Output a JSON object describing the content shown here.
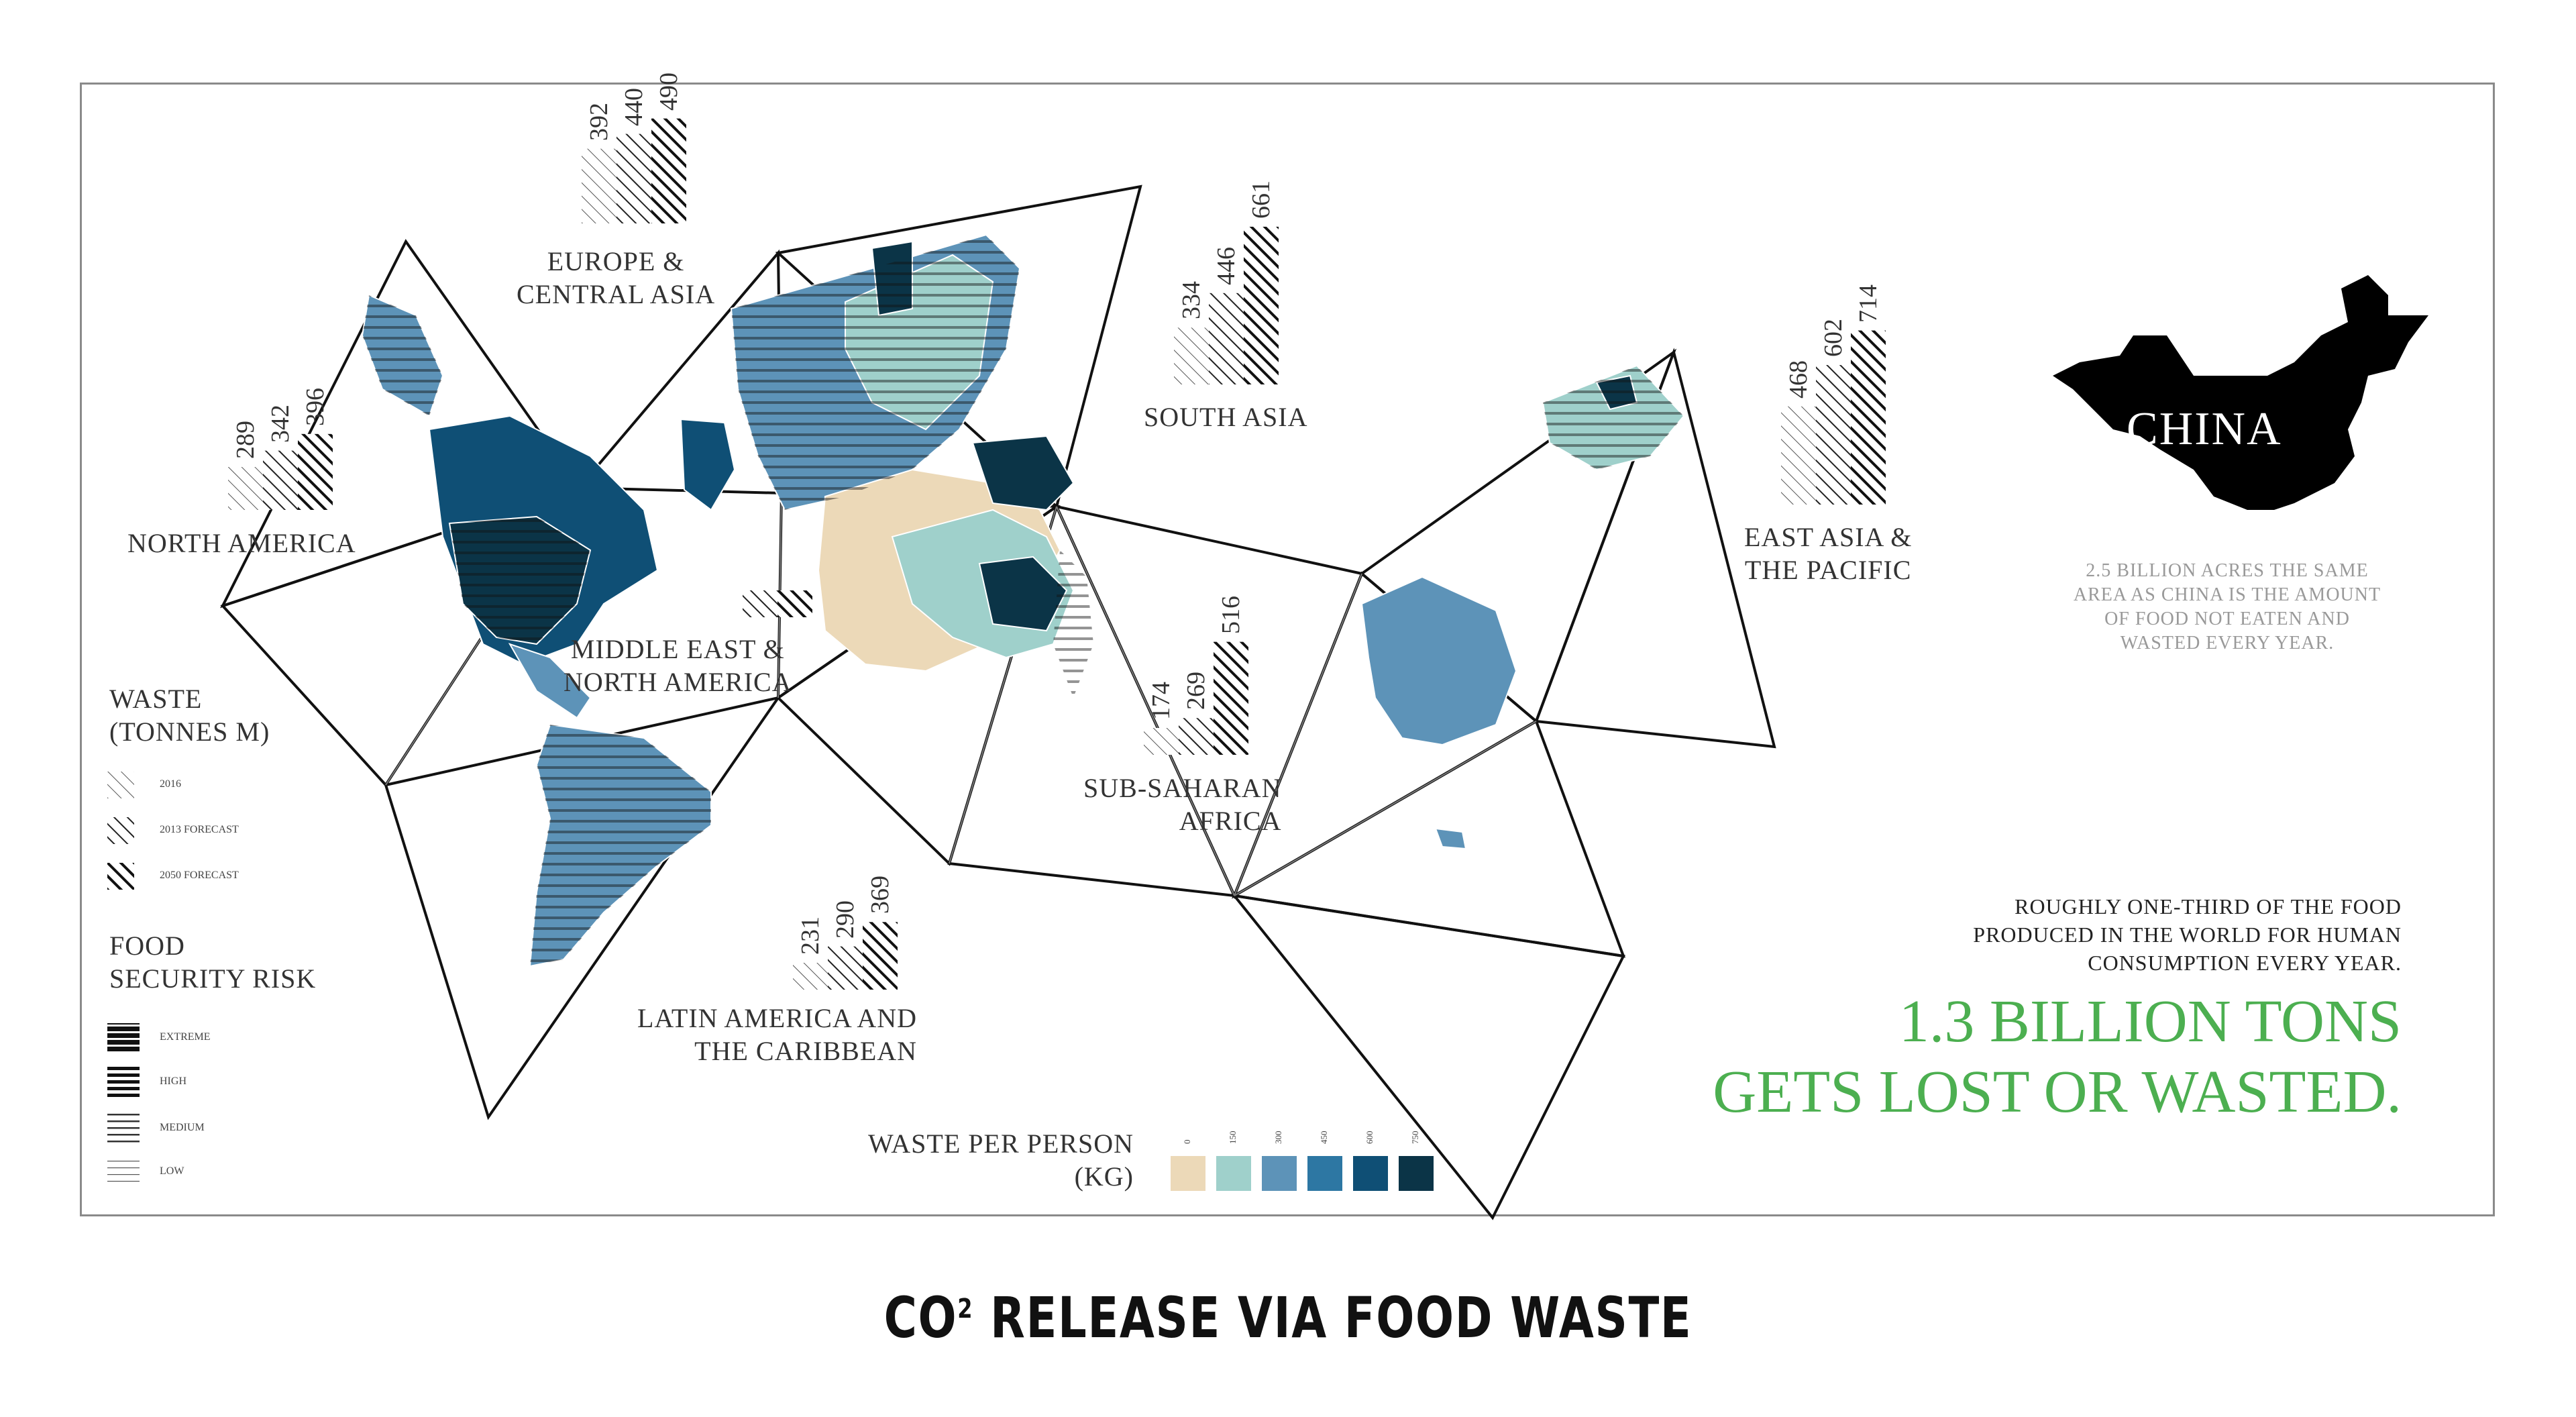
{
  "title": {
    "prefix": "CO",
    "superscript": "2",
    "suffix": " RELEASE VIA FOOD WASTE"
  },
  "regions": [
    {
      "key": "north_america",
      "label": [
        "NORTH AMERICA"
      ],
      "values": [
        "289",
        "342",
        "396"
      ]
    },
    {
      "key": "europe",
      "label": [
        "EUROPE &",
        "CENTRAL ASIA"
      ],
      "values": [
        "392",
        "440",
        "490"
      ]
    },
    {
      "key": "south_asia",
      "label": [
        "SOUTH ASIA"
      ],
      "values": [
        "334",
        "446",
        "661"
      ]
    },
    {
      "key": "east_asia",
      "label": [
        "EAST ASIA &",
        "THE PACIFIC"
      ],
      "values": [
        "468",
        "602",
        "714"
      ]
    },
    {
      "key": "middle_east",
      "label": [
        "MIDDLE EAST &",
        "NORTH AMERICA"
      ],
      "values": []
    },
    {
      "key": "sub_saharan",
      "label": [
        "SUB-SAHARAN",
        "AFRICA"
      ],
      "values": [
        "174",
        "269",
        "516"
      ]
    },
    {
      "key": "latin_america",
      "label": [
        "LATIN AMERICA AND",
        "THE CARIBBEAN"
      ],
      "values": [
        "231",
        "290",
        "369"
      ]
    }
  ],
  "waste_legend": {
    "title": [
      "WASTE",
      "(TONNES M)"
    ],
    "items": [
      "2016",
      "2013 FORECAST",
      "2050 FORECAST"
    ]
  },
  "food_security_legend": {
    "title": [
      "FOOD",
      "SECURITY RISK"
    ],
    "items": [
      "EXTREME",
      "HIGH",
      "MEDIUM",
      "LOW"
    ]
  },
  "waste_per_person": {
    "title": [
      "WASTE PER PERSON",
      "(KG)"
    ],
    "ticks": [
      "0",
      "150",
      "300",
      "450",
      "600",
      "750"
    ],
    "colors": [
      "#ecd9b8",
      "#9fd0cb",
      "#5d93b8",
      "#2d77a3",
      "#0f4f75",
      "#0b3447"
    ]
  },
  "china": {
    "label": "CHINA",
    "caption": [
      "2.5 BILLION ACRES THE SAME",
      "AREA AS CHINA IS THE AMOUNT",
      "OF FOOD NOT EATEN AND",
      "WASTED EVERY YEAR."
    ]
  },
  "stat": {
    "caption": [
      "ROUGHLY  ONE-THIRD OF THE FOOD",
      "PRODUCED IN THE WORLD FOR HUMAN",
      "CONSUMPTION EVERY YEAR."
    ],
    "headline": [
      "1.3 BILLION TONS",
      "GETS LOST OR WASTED."
    ],
    "headline_color": "#4caf50"
  }
}
